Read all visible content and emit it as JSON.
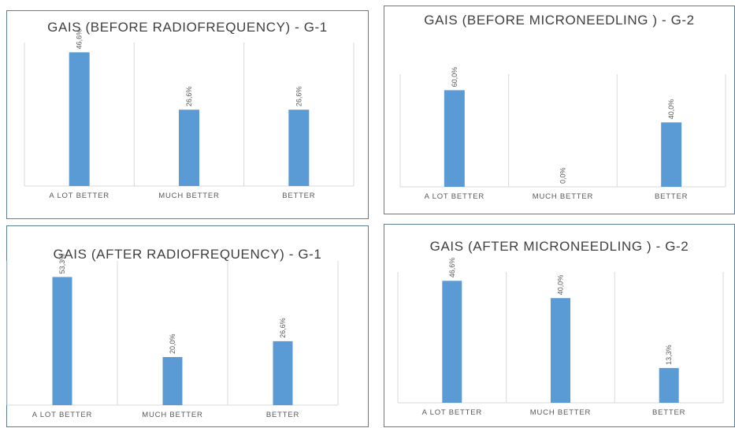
{
  "colors": {
    "bar": "#5b9bd5",
    "text": "#595959",
    "grid": "#d9d9d9",
    "border": "#5b7f95"
  },
  "chart_data": [
    {
      "type": "bar",
      "title": "GAIS (BEFORE RADIOFREQUENCY) - G-1",
      "categories": [
        "A LOT BETTER",
        "MUCH BETTER",
        "BETTER"
      ],
      "values": [
        46.6,
        26.6,
        26.6
      ],
      "value_labels": [
        "46,6%",
        "26,6%",
        "26,6%"
      ],
      "ylim": [
        0,
        50
      ],
      "xlabel": "",
      "ylabel": "",
      "legend": "none",
      "grid": "vertical separators"
    },
    {
      "type": "bar",
      "title": "GAIS (BEFORE MICRONEEDLING ) - G-2",
      "categories": [
        "A LOT BETTER",
        "MUCH BETTER",
        "BETTER"
      ],
      "values": [
        60.0,
        0.0,
        40.0
      ],
      "value_labels": [
        "60,0%",
        "0,0%",
        "40,0%"
      ],
      "ylim": [
        0,
        70
      ],
      "xlabel": "",
      "ylabel": "",
      "legend": "none",
      "grid": "vertical separators"
    },
    {
      "type": "bar",
      "title": "GAIS (AFTER RADIOFREQUENCY) - G-1",
      "categories": [
        "A LOT BETTER",
        "MUCH BETTER",
        "BETTER"
      ],
      "values": [
        53.3,
        20.0,
        26.6
      ],
      "value_labels": [
        "53,3%",
        "20,0%",
        "26,6%"
      ],
      "ylim": [
        0,
        60
      ],
      "xlabel": "",
      "ylabel": "",
      "legend": "none",
      "grid": "vertical separators"
    },
    {
      "type": "bar",
      "title": "GAIS (AFTER MICRONEEDLING ) - G-2",
      "categories": [
        "A LOT BETTER",
        "MUCH BETTER",
        "BETTER"
      ],
      "values": [
        46.6,
        40.0,
        13.3
      ],
      "value_labels": [
        "46,6%",
        "40,0%",
        "13,3%"
      ],
      "ylim": [
        0,
        50
      ],
      "xlabel": "",
      "ylabel": "",
      "legend": "none",
      "grid": "vertical separators"
    }
  ]
}
